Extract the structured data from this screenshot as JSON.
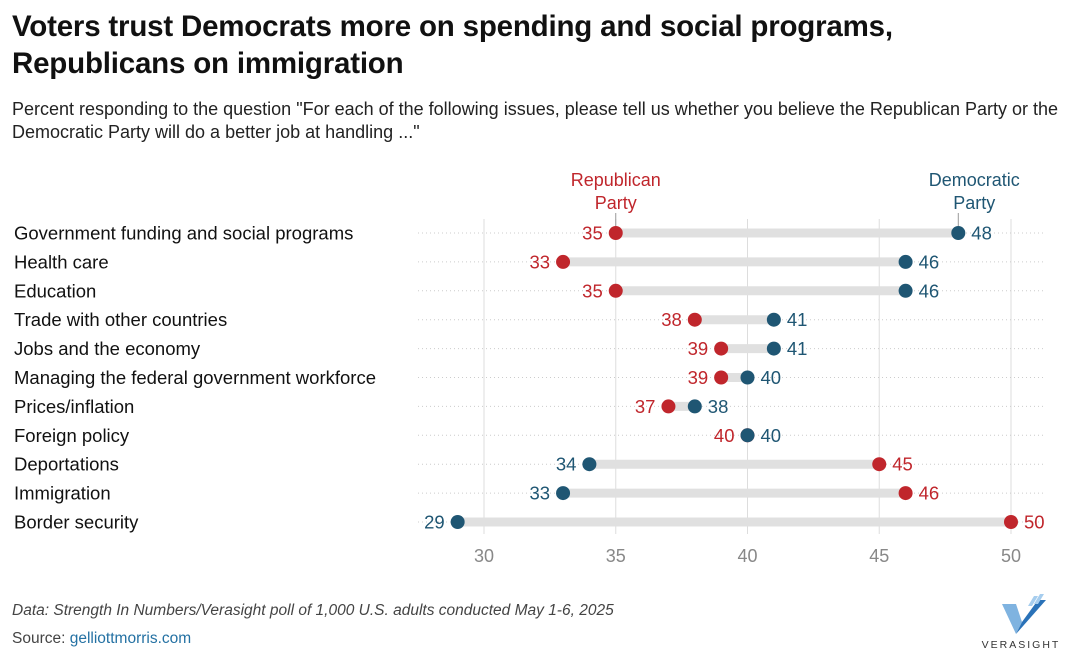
{
  "title": "Voters trust Democrats more on spending and social programs, Republicans on immigration",
  "subtitle": "Percent responding to the question \"For each of the following issues, please tell us whether you believe the Republican Party or the Democratic Party will do a better job at handling ...\"",
  "note": "Data: Strength In Numbers/Verasight poll of 1,000 U.S. adults conducted May 1-6, 2025",
  "source": {
    "label": "Source:",
    "link": "gelliottmorris.com"
  },
  "logo": {
    "text": "VERASIGHT"
  },
  "colors": {
    "republican": "#c0262c",
    "democratic": "#1f5673",
    "connector": "#e0e0e0",
    "grid": "#dddddd",
    "axis_text": "#888888"
  },
  "chart_data": {
    "type": "dot",
    "xlim": [
      28.5,
      51
    ],
    "xticks": [
      30,
      35,
      40,
      45,
      50
    ],
    "legend": {
      "republican": [
        "Republican",
        "Party"
      ],
      "democratic": [
        "Democratic",
        "Party"
      ]
    },
    "categories": [
      "Government funding and social programs",
      "Health care",
      "Education",
      "Trade with other countries",
      "Jobs and the economy",
      "Managing the federal government workforce",
      "Prices/inflation",
      "Foreign policy",
      "Deportations",
      "Immigration",
      "Border security"
    ],
    "series": [
      {
        "name": "Republican Party",
        "values": [
          35,
          33,
          35,
          38,
          39,
          39,
          37,
          40,
          45,
          46,
          50
        ]
      },
      {
        "name": "Democratic Party",
        "values": [
          48,
          46,
          46,
          41,
          41,
          40,
          38,
          40,
          34,
          33,
          29
        ]
      }
    ]
  }
}
